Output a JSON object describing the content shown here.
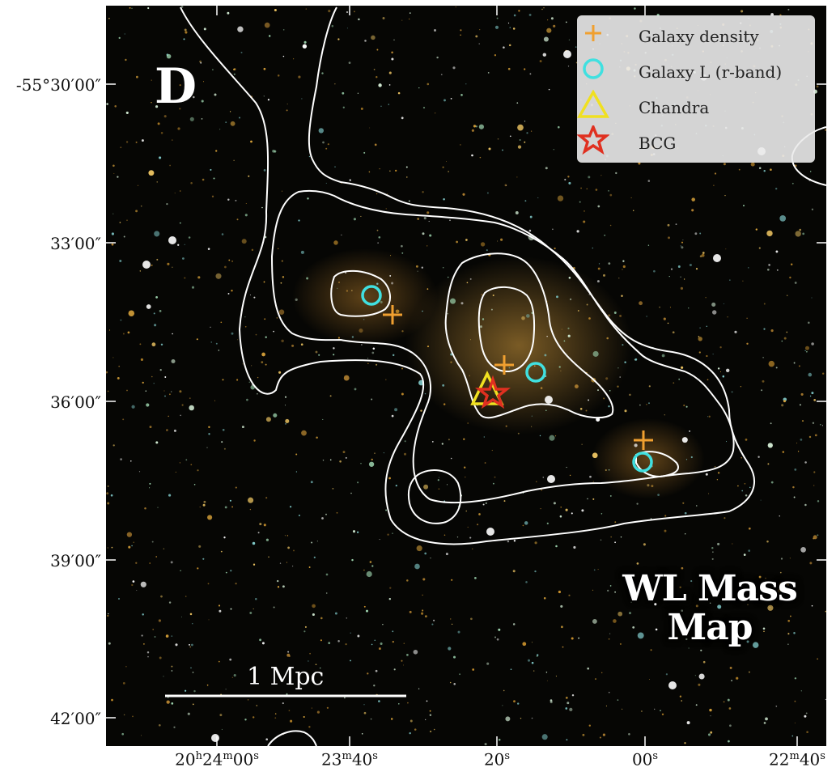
{
  "panel_letter": "D",
  "map_label_line1": "WL Mass",
  "map_label_line2": "Map",
  "scale_bar_label": "1 Mpc",
  "legend": [
    {
      "label": "Galaxy density",
      "icon": "plus-icon",
      "color": "#f0a030"
    },
    {
      "label": "Galaxy L (r-band)",
      "icon": "circle-icon",
      "color": "#40e0e0"
    },
    {
      "label": "Chandra",
      "icon": "triangle-icon",
      "color": "#f0e020"
    },
    {
      "label": "BCG",
      "icon": "star-icon",
      "color": "#e03020"
    }
  ],
  "dec_ticks": [
    "-55°30′00″",
    "33′00″",
    "36′00″",
    "39′00″",
    "42′00″"
  ],
  "ra_ticks": [
    {
      "main": "20",
      "h": "h",
      "m_val": "24",
      "m": "m",
      "s_val": "00",
      "s": "s"
    },
    {
      "main": "",
      "h": "",
      "m_val": "23",
      "m": "m",
      "s_val": "40",
      "s": "s"
    },
    {
      "main": "",
      "h": "",
      "m_val": "",
      "m": "",
      "s_val": "20",
      "s": "s"
    },
    {
      "main": "",
      "h": "",
      "m_val": "",
      "m": "",
      "s_val": "00",
      "s": "s"
    },
    {
      "main": "",
      "h": "",
      "m_val": "22",
      "m": "m",
      "s_val": "40",
      "s": "s"
    }
  ]
}
